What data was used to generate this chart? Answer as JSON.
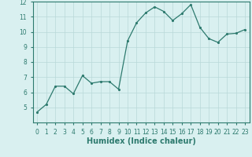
{
  "xlabel": "Humidex (Indice chaleur)",
  "x": [
    0,
    1,
    2,
    3,
    4,
    5,
    6,
    7,
    8,
    9,
    10,
    11,
    12,
    13,
    14,
    15,
    16,
    17,
    18,
    19,
    20,
    21,
    22,
    23
  ],
  "y": [
    4.7,
    5.2,
    6.4,
    6.4,
    5.9,
    7.1,
    6.6,
    6.7,
    6.7,
    6.2,
    9.4,
    10.6,
    11.25,
    11.65,
    11.35,
    10.75,
    11.2,
    11.8,
    10.3,
    9.55,
    9.3,
    9.85,
    9.9,
    10.15
  ],
  "line_color": "#2d7a6e",
  "marker": ".",
  "bg_color": "#d9f0f0",
  "grid_color": "#b8d8d8",
  "axis_color": "#2d7a6e",
  "tick_color": "#2d7a6e",
  "ylim": [
    4,
    12
  ],
  "xlim": [
    -0.5,
    23.5
  ],
  "yticks": [
    5,
    6,
    7,
    8,
    9,
    10,
    11,
    12
  ],
  "xticks": [
    0,
    1,
    2,
    3,
    4,
    5,
    6,
    7,
    8,
    9,
    10,
    11,
    12,
    13,
    14,
    15,
    16,
    17,
    18,
    19,
    20,
    21,
    22,
    23
  ],
  "xlabel_fontsize": 7,
  "tick_fontsize": 5.5,
  "markersize": 2.5,
  "linewidth": 0.9
}
